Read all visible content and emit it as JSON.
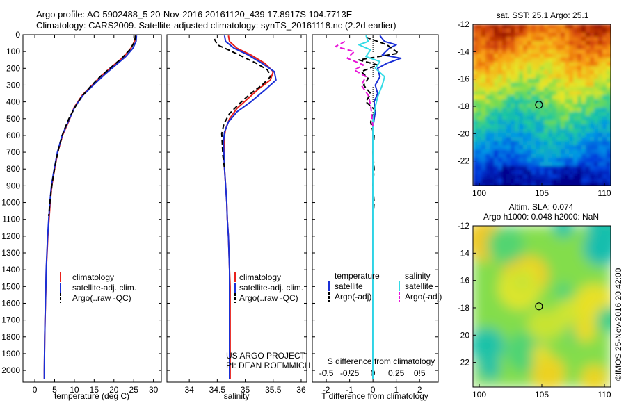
{
  "header": {
    "title_line1": "Argo profile: AO 5902488_5 20-Nov-2016 20161120_439 17.8917S 104.7713E",
    "title_line2": "Climatology: CARS2009. Satellite-adjusted climatology: synTS_20161118.nc (2.2d earlier)"
  },
  "colors": {
    "climatology": "#e8211c",
    "satellite": "#1a2fd6",
    "argo": "#000000",
    "salinity_satellite": "#33dbe6",
    "salinity_argo": "#e815d8"
  },
  "chart_data": [
    {
      "id": "temperature",
      "type": "line",
      "xlabel": "temperature (deg C)",
      "ylabel": "",
      "xlim": [
        -3,
        32
      ],
      "ylim": [
        2070,
        0
      ],
      "xticks": [
        0,
        5,
        10,
        15,
        20,
        25,
        30
      ],
      "xtick_labels": [
        "0",
        "5",
        "10",
        "15",
        "20",
        "25",
        "30"
      ],
      "yticks": [
        0,
        100,
        200,
        300,
        400,
        500,
        600,
        700,
        800,
        900,
        1000,
        1100,
        1200,
        1300,
        1400,
        1500,
        1600,
        1700,
        1800,
        1900,
        2000
      ],
      "ytick_labels": [
        "0",
        "100",
        "200",
        "300",
        "400",
        "500",
        "600",
        "700",
        "800",
        "900",
        "1000",
        "1100",
        "1200",
        "1300",
        "1400",
        "1500",
        "1600",
        "1700",
        "1800",
        "1900",
        "2000"
      ],
      "legend": [
        "climatology",
        "satellite-adj. clim.",
        "Argo(..raw -QC)"
      ],
      "series": [
        {
          "name": "climatology",
          "color": "#e8211c",
          "dash": "",
          "points": [
            [
              25.5,
              5
            ],
            [
              25.2,
              40
            ],
            [
              24.3,
              80
            ],
            [
              22.5,
              130
            ],
            [
              20,
              180
            ],
            [
              17,
              240
            ],
            [
              14.5,
              300
            ],
            [
              12,
              360
            ],
            [
              10,
              430
            ],
            [
              8.5,
              520
            ],
            [
              7,
              600
            ],
            [
              5.8,
              700
            ],
            [
              5,
              800
            ],
            [
              4.3,
              900
            ],
            [
              3.9,
              1000
            ],
            [
              3.6,
              1100
            ],
            [
              3.3,
              1200
            ],
            [
              3.1,
              1300
            ],
            [
              2.9,
              1400
            ],
            [
              2.8,
              1500
            ],
            [
              2.7,
              1600
            ],
            [
              2.6,
              1700
            ],
            [
              2.5,
              1800
            ],
            [
              2.45,
              1900
            ],
            [
              2.4,
              2000
            ],
            [
              2.4,
              2050
            ]
          ]
        },
        {
          "name": "satellite-adj. clim.",
          "color": "#1a2fd6",
          "dash": "",
          "points": [
            [
              25.7,
              5
            ],
            [
              25.6,
              40
            ],
            [
              24.8,
              80
            ],
            [
              23,
              130
            ],
            [
              20.5,
              180
            ],
            [
              17.5,
              240
            ],
            [
              14.8,
              300
            ],
            [
              12.2,
              360
            ],
            [
              10.1,
              430
            ],
            [
              8.4,
              520
            ],
            [
              6.9,
              600
            ],
            [
              5.7,
              700
            ],
            [
              4.9,
              800
            ],
            [
              4.2,
              900
            ],
            [
              3.8,
              1000
            ],
            [
              3.5,
              1100
            ],
            [
              3.25,
              1200
            ],
            [
              3.05,
              1300
            ],
            [
              2.88,
              1400
            ],
            [
              2.78,
              1500
            ],
            [
              2.68,
              1600
            ],
            [
              2.58,
              1700
            ],
            [
              2.5,
              1800
            ],
            [
              2.45,
              1900
            ],
            [
              2.4,
              2000
            ],
            [
              2.4,
              2050
            ]
          ]
        },
        {
          "name": "Argo(..raw -QC)",
          "color": "#000000",
          "dash": "7,4",
          "points": [
            [
              25.4,
              5
            ],
            [
              25.3,
              40
            ],
            [
              24,
              90
            ],
            [
              22,
              140
            ],
            [
              19.5,
              190
            ],
            [
              16.5,
              250
            ],
            [
              14,
              310
            ],
            [
              11.8,
              370
            ],
            [
              10.2,
              430
            ],
            [
              8.6,
              500
            ],
            [
              7.2,
              580
            ],
            [
              6,
              680
            ],
            [
              5.1,
              780
            ],
            [
              4.4,
              880
            ],
            [
              3.9,
              980
            ],
            [
              3.5,
              1080
            ]
          ]
        }
      ]
    },
    {
      "id": "salinity",
      "type": "line",
      "xlabel": "salinity",
      "xlim": [
        33.6,
        36.1
      ],
      "ylim": [
        2070,
        0
      ],
      "xticks": [
        34,
        34.5,
        35,
        35.5,
        36
      ],
      "xtick_labels": [
        "34",
        "34.5",
        "35",
        "35.5",
        "36"
      ],
      "legend": [
        "climatology",
        "satellite-adj. clim.",
        "Argo(..raw -QC)"
      ],
      "annotation": [
        "US ARGO PROJECT",
        "PI: DEAN ROEMMICH"
      ],
      "series": [
        {
          "name": "climatology",
          "color": "#e8211c",
          "dash": "",
          "points": [
            [
              34.7,
              5
            ],
            [
              34.72,
              40
            ],
            [
              34.85,
              80
            ],
            [
              35.1,
              120
            ],
            [
              35.35,
              170
            ],
            [
              35.5,
              220
            ],
            [
              35.45,
              270
            ],
            [
              35.25,
              320
            ],
            [
              35.05,
              380
            ],
            [
              34.85,
              440
            ],
            [
              34.72,
              500
            ],
            [
              34.65,
              560
            ],
            [
              34.62,
              620
            ],
            [
              34.62,
              700
            ],
            [
              34.63,
              800
            ],
            [
              34.65,
              900
            ],
            [
              34.67,
              1000
            ],
            [
              34.68,
              1100
            ],
            [
              34.7,
              1200
            ],
            [
              34.71,
              1300
            ],
            [
              34.72,
              1400
            ],
            [
              34.73,
              1500
            ],
            [
              34.73,
              1600
            ],
            [
              34.73,
              1700
            ],
            [
              34.73,
              1800
            ],
            [
              34.73,
              1900
            ],
            [
              34.73,
              2000
            ],
            [
              34.73,
              2050
            ]
          ]
        },
        {
          "name": "satellite-adj. clim.",
          "color": "#1a2fd6",
          "dash": "",
          "points": [
            [
              34.63,
              5
            ],
            [
              34.65,
              40
            ],
            [
              34.8,
              80
            ],
            [
              35.05,
              120
            ],
            [
              35.3,
              170
            ],
            [
              35.52,
              220
            ],
            [
              35.55,
              270
            ],
            [
              35.35,
              330
            ],
            [
              35.1,
              400
            ],
            [
              34.85,
              460
            ],
            [
              34.7,
              520
            ],
            [
              34.63,
              580
            ],
            [
              34.61,
              640
            ],
            [
              34.62,
              720
            ],
            [
              34.63,
              800
            ],
            [
              34.65,
              900
            ],
            [
              34.67,
              1000
            ],
            [
              34.68,
              1100
            ],
            [
              34.7,
              1200
            ],
            [
              34.71,
              1300
            ],
            [
              34.72,
              1400
            ],
            [
              34.72,
              1500
            ],
            [
              34.72,
              1600
            ],
            [
              34.72,
              1700
            ],
            [
              34.72,
              1800
            ],
            [
              34.72,
              1900
            ],
            [
              34.72,
              2000
            ],
            [
              34.72,
              2050
            ]
          ]
        },
        {
          "name": "Argo(..raw -QC)",
          "color": "#000000",
          "dash": "7,4",
          "points": [
            [
              34.45,
              25
            ],
            [
              34.5,
              60
            ],
            [
              34.7,
              90
            ],
            [
              34.95,
              130
            ],
            [
              35.2,
              170
            ],
            [
              35.4,
              210
            ],
            [
              35.45,
              250
            ],
            [
              35.3,
              300
            ],
            [
              35.1,
              350
            ],
            [
              34.9,
              410
            ],
            [
              34.72,
              470
            ],
            [
              34.62,
              530
            ],
            [
              34.58,
              590
            ],
            [
              34.59,
              650
            ],
            [
              34.6,
              720
            ],
            [
              34.63,
              800
            ]
          ]
        }
      ]
    },
    {
      "id": "difference",
      "type": "line",
      "xlabel": "T difference from climatology",
      "top_axis_label": "S difference from climatology",
      "xlim": [
        -2.6,
        2.8
      ],
      "ylim": [
        2070,
        0
      ],
      "xticks": [
        -2,
        -1,
        0,
        1,
        2
      ],
      "xtick_labels": [
        "-2",
        "-1",
        "0",
        "1",
        "2"
      ],
      "sal_xticks": [
        -0.5,
        -0.25,
        0,
        0.25,
        0.5
      ],
      "sal_xtick_labels": [
        "-0.5",
        "-0.25",
        "0",
        "0.25",
        "0.5"
      ],
      "legend_temperature_header": "temperature",
      "legend_salinity_header": "salinity",
      "legend_temperature": [
        "satellite",
        "Argo(-adj)"
      ],
      "legend_salinity": [
        "satellite",
        "Argo(-adj)"
      ],
      "series": [
        {
          "name": "T satellite",
          "color": "#1a2fd6",
          "dash": "",
          "points": [
            [
              0.3,
              5
            ],
            [
              0.5,
              40
            ],
            [
              1.0,
              60
            ],
            [
              0.7,
              80
            ],
            [
              0.4,
              120
            ],
            [
              1.2,
              140
            ],
            [
              0.6,
              170
            ],
            [
              0.2,
              200
            ],
            [
              0.3,
              250
            ],
            [
              0.1,
              300
            ],
            [
              0.2,
              350
            ],
            [
              0.05,
              400
            ],
            [
              0.1,
              460
            ],
            [
              0,
              550
            ],
            [
              0,
              700
            ],
            [
              0,
              1000
            ],
            [
              0,
              1500
            ],
            [
              0,
              2000
            ],
            [
              0,
              2050
            ]
          ]
        },
        {
          "name": "T Argo(-adj)",
          "color": "#000000",
          "dash": "7,4",
          "points": [
            [
              -0.3,
              15
            ],
            [
              0.6,
              60
            ],
            [
              1.1,
              110
            ],
            [
              -0.6,
              150
            ],
            [
              0.2,
              180
            ],
            [
              -0.5,
              220
            ],
            [
              -0.2,
              260
            ],
            [
              -0.4,
              300
            ],
            [
              -0.1,
              350
            ],
            [
              -0.3,
              400
            ],
            [
              0.1,
              450
            ],
            [
              -0.1,
              520
            ],
            [
              0.05,
              600
            ],
            [
              0,
              700
            ],
            [
              0.05,
              800
            ],
            [
              0,
              900
            ],
            [
              0.05,
              1000
            ],
            [
              0,
              1100
            ]
          ]
        },
        {
          "name": "S satellite",
          "color": "#33dbe6",
          "dash": "",
          "points": [
            [
              -0.3,
              5
            ],
            [
              -0.2,
              40
            ],
            [
              -0.6,
              60
            ],
            [
              -0.1,
              90
            ],
            [
              -0.3,
              130
            ],
            [
              0.3,
              160
            ],
            [
              0.1,
              200
            ],
            [
              0.5,
              250
            ],
            [
              0.4,
              300
            ],
            [
              0.2,
              370
            ],
            [
              0.1,
              430
            ],
            [
              0,
              500
            ],
            [
              0,
              600
            ],
            [
              0,
              800
            ],
            [
              0,
              1200
            ],
            [
              0,
              1600
            ],
            [
              0,
              2000
            ],
            [
              0,
              2050
            ]
          ]
        },
        {
          "name": "S Argo(-adj)",
          "color": "#e815d8",
          "dash": "7,4",
          "points": [
            [
              -1.2,
              40
            ],
            [
              -1.6,
              70
            ],
            [
              -0.8,
              100
            ],
            [
              -1.1,
              140
            ],
            [
              -0.4,
              180
            ],
            [
              -0.8,
              210
            ],
            [
              -0.3,
              250
            ],
            [
              -0.5,
              300
            ],
            [
              -0.2,
              360
            ],
            [
              -0.1,
              420
            ],
            [
              -0.05,
              480
            ],
            [
              0,
              550
            ]
          ]
        }
      ]
    },
    {
      "id": "sst_map",
      "type": "heatmap",
      "title": "sat. SST: 25.1  Argo: 25.1",
      "xlim": [
        99.5,
        110.5
      ],
      "ylim": [
        -23.8,
        -12
      ],
      "xticks": [
        100,
        105,
        110
      ],
      "xtick_labels": [
        "100",
        "105",
        "110"
      ],
      "yticks": [
        -12,
        -14,
        -16,
        -18,
        -20,
        -22
      ],
      "ytick_labels": [
        "-12",
        "-14",
        "-16",
        "-18",
        "-20",
        "-22"
      ],
      "marker": {
        "lon": 104.77,
        "lat": -17.89
      }
    },
    {
      "id": "sla_map",
      "type": "heatmap",
      "title_line1": "Altim. SLA: 0.074",
      "title_line2": "Argo h1000: 0.048 h2000: NaN",
      "xlim": [
        99.5,
        110.5
      ],
      "ylim": [
        -23.8,
        -12
      ],
      "xticks": [
        100,
        105,
        110
      ],
      "xtick_labels": [
        "100",
        "105",
        "110"
      ],
      "yticks": [
        -12,
        -14,
        -16,
        -18,
        -20,
        -22
      ],
      "ytick_labels": [
        "-12",
        "-14",
        "-16",
        "-18",
        "-20",
        "-22"
      ],
      "marker": {
        "lon": 104.77,
        "lat": -17.89
      }
    }
  ],
  "footer": {
    "credit": "©IMOS 25-Nov-2016 20:42:00"
  }
}
